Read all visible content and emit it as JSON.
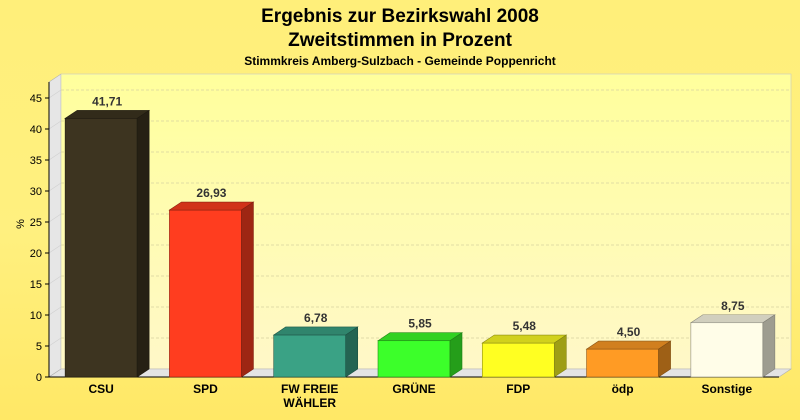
{
  "chart_data": {
    "type": "bar",
    "title": "Ergebnis zur Bezirkswahl 2008",
    "subtitle": "Zweitstimmen in Prozent",
    "subtitle2": "Stimmkreis Amberg-Sulzbach - Gemeinde Poppenricht",
    "ylabel": "%",
    "xlabel": "",
    "ylim": [
      0,
      47
    ],
    "yticks": [
      0,
      5,
      10,
      15,
      20,
      25,
      30,
      35,
      40,
      45
    ],
    "grid": true,
    "categories": [
      [
        "CSU"
      ],
      [
        "SPD"
      ],
      [
        "FW FREIE",
        "WÄHLER"
      ],
      [
        "GRÜNE"
      ],
      [
        "FDP"
      ],
      [
        "ödp"
      ],
      [
        "Sonstige"
      ]
    ],
    "values": [
      41.71,
      26.93,
      6.78,
      5.85,
      5.48,
      4.5,
      8.75
    ],
    "value_labels": [
      "41,71",
      "26,93",
      "6,78",
      "5,85",
      "5,48",
      "4,50",
      "8,75"
    ],
    "colors": [
      "#3d3420",
      "#ff3d1f",
      "#3aa285",
      "#3cff2a",
      "#ffff22",
      "#ff9b24",
      "#fffde8"
    ]
  }
}
